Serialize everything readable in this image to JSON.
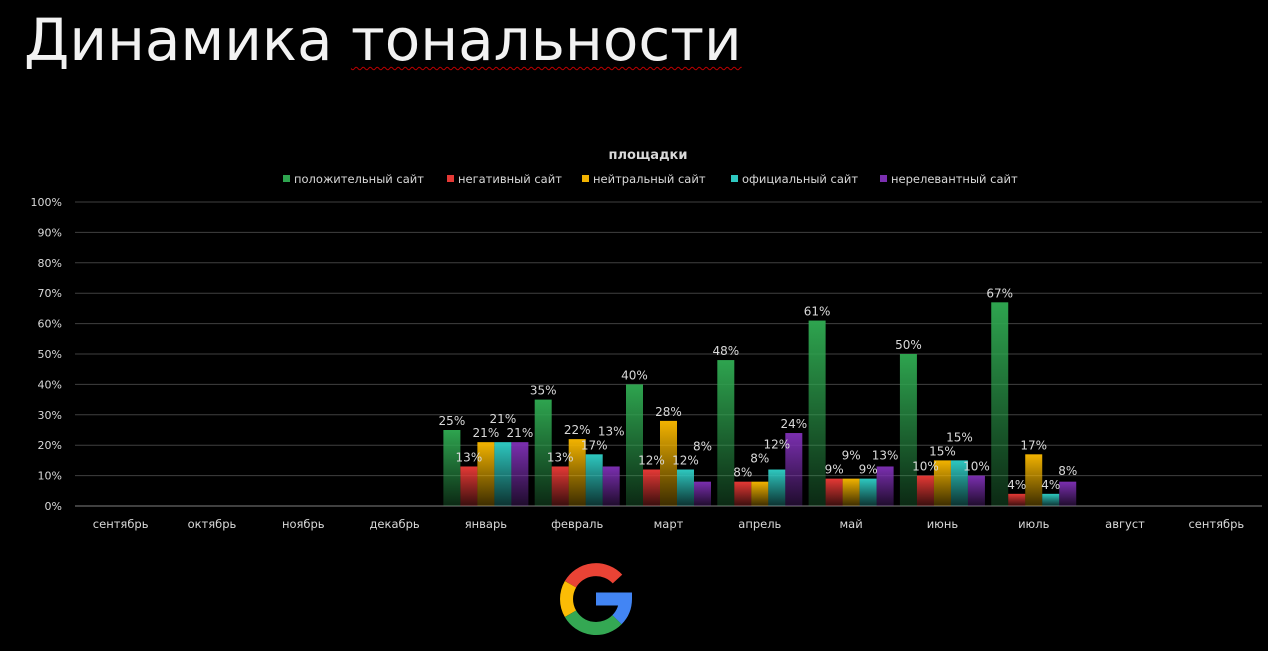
{
  "slide": {
    "title_word1": "Динамика",
    "title_word2": "тональности"
  },
  "chart_data": {
    "type": "bar",
    "title": "площадки",
    "legend_position": "top",
    "grid": true,
    "ylim": [
      0,
      100
    ],
    "yticks": [
      "0%",
      "10%",
      "20%",
      "30%",
      "40%",
      "50%",
      "60%",
      "70%",
      "80%",
      "90%",
      "100%"
    ],
    "categories": [
      "сентябрь",
      "октябрь",
      "ноябрь",
      "декабрь",
      "январь",
      "февраль",
      "март",
      "апрель",
      "май",
      "июнь",
      "июль",
      "август",
      "сентябрь"
    ],
    "series": [
      {
        "name": "положительный сайт",
        "color": "#2ea44f",
        "values": [
          null,
          null,
          null,
          null,
          25,
          35,
          40,
          48,
          61,
          50,
          67,
          null,
          null
        ]
      },
      {
        "name": "негативный сайт",
        "color": "#e53935",
        "values": [
          null,
          null,
          null,
          null,
          13,
          13,
          12,
          8,
          9,
          10,
          4,
          null,
          null
        ]
      },
      {
        "name": "нейтральный сайт",
        "color": "#f2b300",
        "values": [
          null,
          null,
          null,
          null,
          21,
          22,
          28,
          8,
          9,
          15,
          17,
          null,
          null
        ]
      },
      {
        "name": "официальный сайт",
        "color": "#2ec8c0",
        "values": [
          null,
          null,
          null,
          null,
          21,
          17,
          12,
          12,
          9,
          15,
          4,
          null,
          null
        ]
      },
      {
        "name": "нерелевантный сайт",
        "color": "#7b2fb0",
        "values": [
          null,
          null,
          null,
          null,
          21,
          13,
          8,
          24,
          13,
          10,
          8,
          null,
          null
        ]
      }
    ]
  },
  "logo": {
    "name": "google-logo",
    "colors": [
      "#ea4335",
      "#fbbc05",
      "#34a853",
      "#4285f4"
    ]
  }
}
